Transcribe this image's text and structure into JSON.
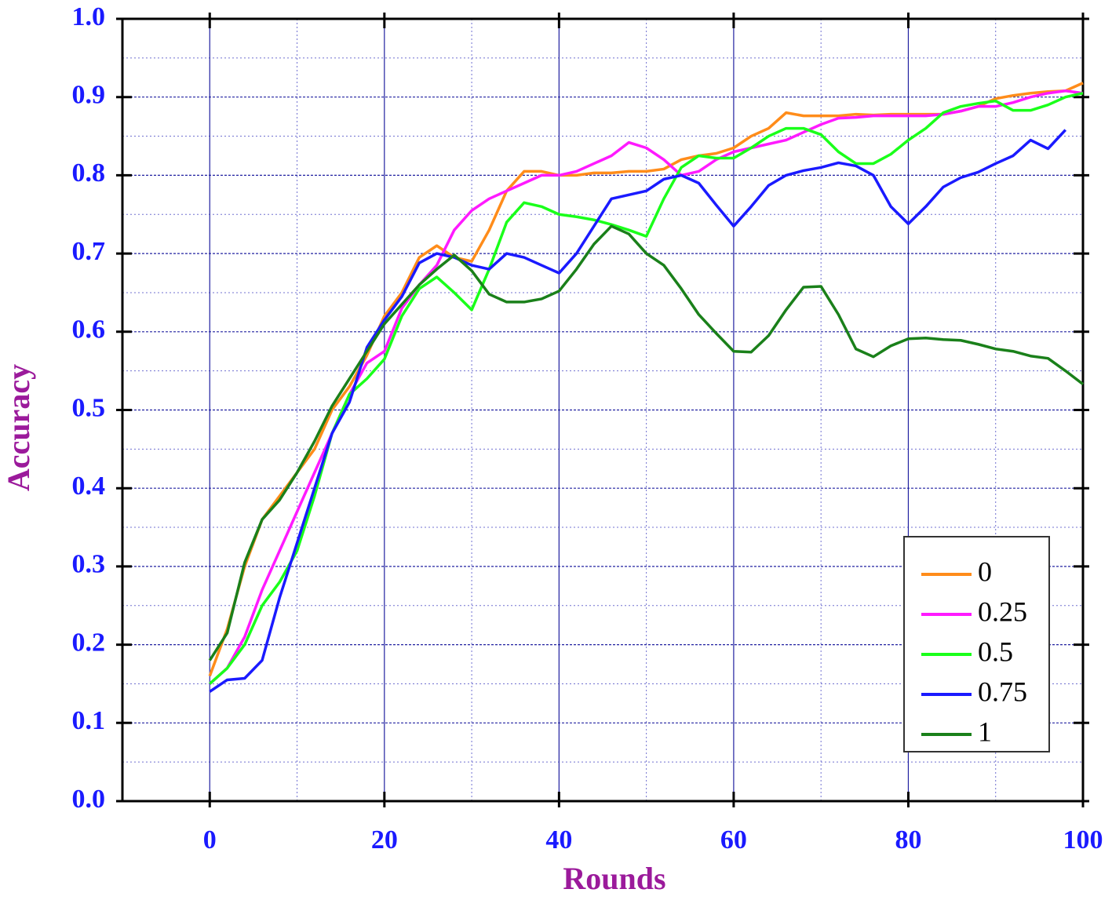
{
  "chart_data": {
    "type": "line",
    "xlabel": "Rounds",
    "ylabel": "Accuracy",
    "x": [
      0,
      2,
      4,
      6,
      8,
      10,
      12,
      14,
      16,
      18,
      20,
      22,
      24,
      26,
      28,
      30,
      32,
      34,
      36,
      38,
      40,
      42,
      44,
      46,
      48,
      50,
      52,
      54,
      56,
      58,
      60,
      62,
      64,
      66,
      68,
      70,
      72,
      74,
      76,
      78,
      80,
      82,
      84,
      86,
      88,
      90,
      92,
      94,
      96,
      98,
      100
    ],
    "series": [
      {
        "name": "0",
        "color": "#ff8c1a",
        "values": [
          0.16,
          0.22,
          0.3,
          0.36,
          0.39,
          0.42,
          0.45,
          0.5,
          0.53,
          0.57,
          0.62,
          0.65,
          0.695,
          0.71,
          0.695,
          0.69,
          0.73,
          0.78,
          0.805,
          0.805,
          0.8,
          0.8,
          0.803,
          0.803,
          0.805,
          0.805,
          0.808,
          0.82,
          0.825,
          0.828,
          0.835,
          0.85,
          0.86,
          0.88,
          0.876,
          0.876,
          0.876,
          0.878,
          0.877,
          0.878,
          0.878,
          0.878,
          0.878,
          0.882,
          0.888,
          0.898,
          0.902,
          0.905,
          0.907,
          0.908,
          0.918
        ]
      },
      {
        "name": "0.25",
        "color": "#ff1aff",
        "values": [
          0.15,
          0.17,
          0.21,
          0.27,
          0.32,
          0.37,
          0.42,
          0.47,
          0.52,
          0.56,
          0.575,
          0.63,
          0.66,
          0.685,
          0.73,
          0.755,
          0.77,
          0.78,
          0.79,
          0.8,
          0.8,
          0.805,
          0.815,
          0.825,
          0.842,
          0.835,
          0.82,
          0.8,
          0.805,
          0.82,
          0.83,
          0.835,
          0.84,
          0.845,
          0.855,
          0.865,
          0.873,
          0.874,
          0.876,
          0.876,
          0.876,
          0.876,
          0.878,
          0.882,
          0.888,
          0.888,
          0.893,
          0.9,
          0.905,
          0.908,
          0.905
        ]
      },
      {
        "name": "0.5",
        "color": "#1aff1a",
        "values": [
          0.15,
          0.17,
          0.2,
          0.25,
          0.28,
          0.32,
          0.39,
          0.47,
          0.52,
          0.54,
          0.565,
          0.62,
          0.655,
          0.67,
          0.65,
          0.628,
          0.68,
          0.74,
          0.765,
          0.76,
          0.75,
          0.747,
          0.743,
          0.737,
          0.73,
          0.722,
          0.77,
          0.81,
          0.825,
          0.822,
          0.822,
          0.835,
          0.85,
          0.86,
          0.86,
          0.852,
          0.83,
          0.815,
          0.815,
          0.827,
          0.845,
          0.86,
          0.88,
          0.888,
          0.892,
          0.895,
          0.883,
          0.883,
          0.89,
          0.9,
          0.905
        ]
      },
      {
        "name": "0.75",
        "color": "#1a1aff",
        "values": [
          0.14,
          0.155,
          0.157,
          0.18,
          0.26,
          0.33,
          0.4,
          0.47,
          0.51,
          0.58,
          0.615,
          0.645,
          0.688,
          0.7,
          0.695,
          0.685,
          0.68,
          0.7,
          0.695,
          0.685,
          0.675,
          0.7,
          0.735,
          0.77,
          0.775,
          0.78,
          0.795,
          0.8,
          0.79,
          0.762,
          0.735,
          0.76,
          0.787,
          0.8,
          0.806,
          0.81,
          0.816,
          0.812,
          0.8,
          0.76,
          0.738,
          0.76,
          0.785,
          0.797,
          0.804,
          0.815,
          0.825,
          0.845,
          0.834,
          0.858,
          null
        ]
      },
      {
        "name": "1",
        "color": "#1a801a",
        "values": [
          0.18,
          0.215,
          0.305,
          0.36,
          0.385,
          0.42,
          0.46,
          0.505,
          0.54,
          0.575,
          0.61,
          0.635,
          0.66,
          0.68,
          0.698,
          0.678,
          0.648,
          0.638,
          0.638,
          0.642,
          0.652,
          0.68,
          0.712,
          0.735,
          0.725,
          0.7,
          0.685,
          0.655,
          0.622,
          0.598,
          0.575,
          0.574,
          0.595,
          0.628,
          0.657,
          0.658,
          0.622,
          0.578,
          0.568,
          0.582,
          0.591,
          0.592,
          0.59,
          0.589,
          0.584,
          0.578,
          0.575,
          0.569,
          0.566,
          0.55,
          0.533
        ]
      }
    ],
    "xlim": [
      -10,
      100
    ],
    "xticks": [
      0,
      20,
      40,
      60,
      80,
      100
    ],
    "ylim": [
      0,
      1
    ],
    "yticks": [
      {
        "value": 0,
        "label": "0.0"
      },
      0.1,
      0.2,
      0.3,
      0.4,
      0.5,
      0.6,
      0.7,
      0.8,
      0.9,
      {
        "value": 1,
        "label": "1.0"
      }
    ],
    "grid": true,
    "legend": "lower right"
  }
}
